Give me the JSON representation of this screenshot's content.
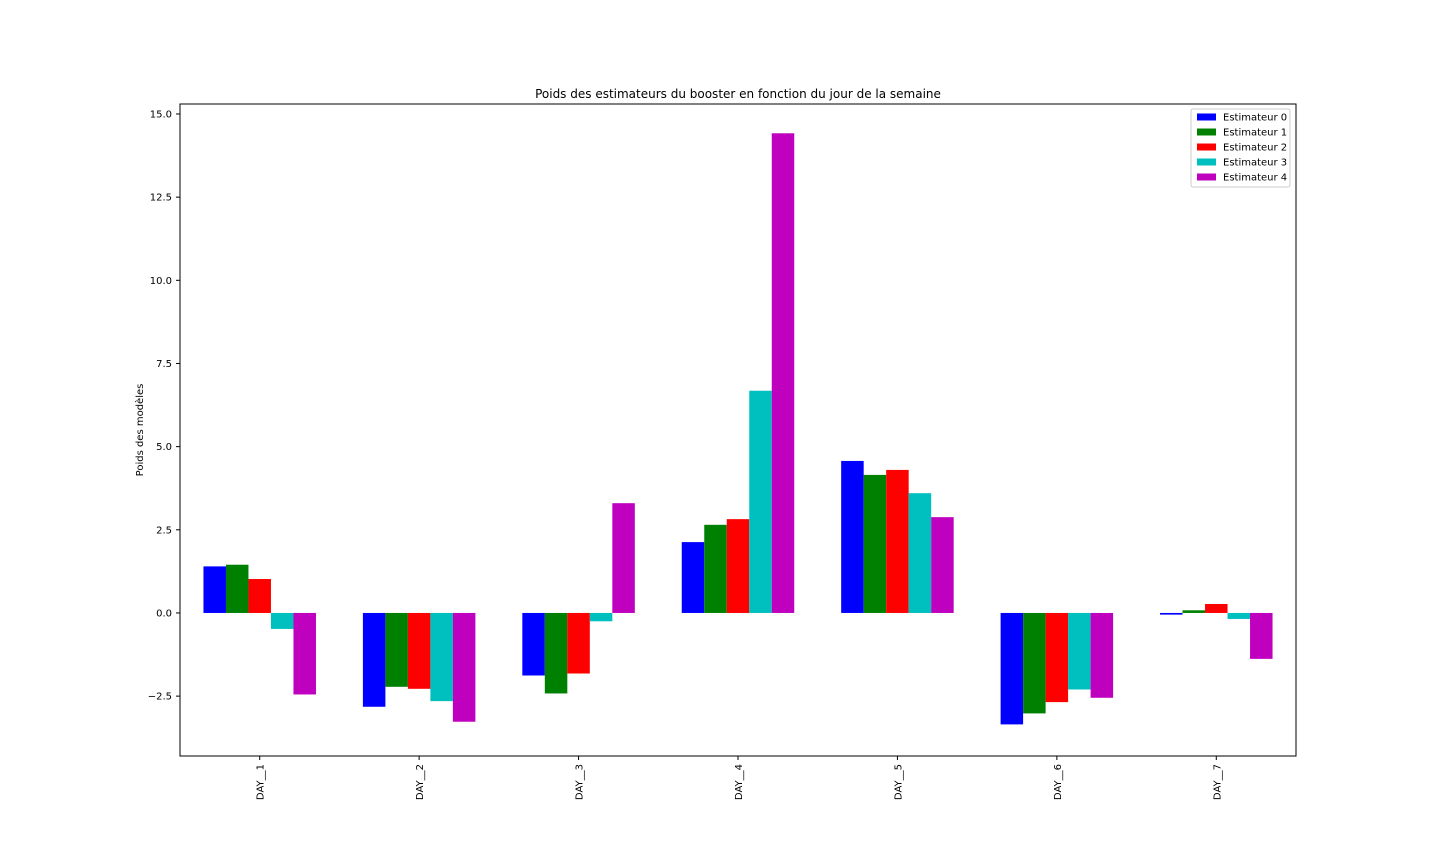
{
  "chart_data": {
    "type": "bar",
    "title": "Poids des estimateurs du booster en fonction du jour de la semaine",
    "xlabel": "",
    "ylabel": "Poids des modèles",
    "categories": [
      "DAY__1",
      "DAY__2",
      "DAY__3",
      "DAY__4",
      "DAY__5",
      "DAY__6",
      "DAY__7"
    ],
    "ylim": [
      -4.3,
      15.3
    ],
    "yticks": [
      -2.5,
      0.0,
      2.5,
      5.0,
      7.5,
      10.0,
      12.5,
      15.0
    ],
    "ytick_labels": [
      "−2.5",
      "0.0",
      "2.5",
      "5.0",
      "7.5",
      "10.0",
      "12.5",
      "15.0"
    ],
    "grid": false,
    "legend_position": "top-right",
    "series": [
      {
        "name": "Estimateur 0",
        "color": "#0000ff",
        "values": [
          1.4,
          -2.82,
          -1.88,
          2.13,
          4.57,
          -3.35,
          -0.05
        ]
      },
      {
        "name": "Estimateur 1",
        "color": "#008000",
        "values": [
          1.45,
          -2.22,
          -2.42,
          2.65,
          4.15,
          -3.02,
          0.08
        ]
      },
      {
        "name": "Estimateur 2",
        "color": "#ff0000",
        "values": [
          1.02,
          -2.28,
          -1.82,
          2.82,
          4.3,
          -2.68,
          0.27
        ]
      },
      {
        "name": "Estimateur 3",
        "color": "#00bfbf",
        "values": [
          -0.48,
          -2.65,
          -0.25,
          6.68,
          3.6,
          -2.3,
          -0.18
        ]
      },
      {
        "name": "Estimateur 4",
        "color": "#bf00bf",
        "values": [
          -2.45,
          -3.27,
          3.3,
          14.42,
          2.88,
          -2.55,
          -1.38
        ]
      }
    ]
  }
}
